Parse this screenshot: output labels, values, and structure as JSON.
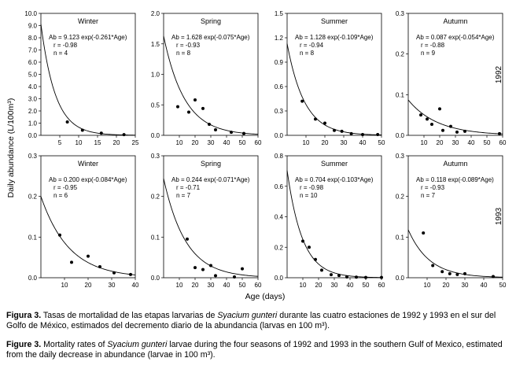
{
  "figure": {
    "ylabel_main": "Daily abundance (L/100m³)",
    "xlabel_main": "Age (days)",
    "year_labels": [
      "1992",
      "1993"
    ]
  },
  "captions": {
    "es": {
      "lead": "Figura 3.",
      "pre": " Tasas de mortalidad de las etapas larvarias de ",
      "species": "Syacium gunteri",
      "post": " durante las cuatro estaciones de 1992 y 1993 en el sur del Golfo de México, estimados del decremento diario de la abundancia (larvas en 100  m³)."
    },
    "en": {
      "lead": "Figure 3.",
      "pre": " Mortality rates of ",
      "species": "Syacium gunteri",
      "post": " larvae during the four seasons of 1992 and 1993 in the southern Gulf of Mexico, estimated from the daily decrease in abundance (larvae in 100 m³)."
    }
  },
  "chart_data": [
    {
      "type": "scatter",
      "year": "1992",
      "title": "Winter",
      "xlim": [
        0,
        25
      ],
      "ylim": [
        0,
        10
      ],
      "xticks": [
        5,
        10,
        15,
        20,
        25
      ],
      "yticks": [
        0,
        1,
        2,
        3,
        4,
        5,
        6,
        7,
        8,
        9,
        10
      ],
      "ytick_labels": [
        "0.0",
        "1.0",
        "2.0",
        "3.0",
        "4.0",
        "5.0",
        "6.0",
        "7.0",
        "8.0",
        "9.0",
        "10.0"
      ],
      "equation": "Ab = 9.123 exp(-0.261*Age)",
      "r": "r = -0.98",
      "n": "n = 4",
      "a": 9.123,
      "k": 0.261,
      "points": [
        {
          "x": 7,
          "y": 1.1
        },
        {
          "x": 11,
          "y": 0.42
        },
        {
          "x": 16,
          "y": 0.18
        },
        {
          "x": 22,
          "y": 0.06
        }
      ]
    },
    {
      "type": "scatter",
      "year": "1992",
      "title": "Spring",
      "xlim": [
        0,
        60
      ],
      "ylim": [
        0,
        2
      ],
      "xticks": [
        10,
        20,
        30,
        40,
        50,
        60
      ],
      "yticks": [
        0,
        0.5,
        1,
        1.5,
        2
      ],
      "ytick_labels": [
        "0.0",
        "0.5",
        "1.0",
        "1.5",
        "2.0"
      ],
      "equation": "Ab = 1.628 exp(-0.075*Age)",
      "r": "r = -0.93",
      "n": "n = 8",
      "a": 1.628,
      "k": 0.075,
      "points": [
        {
          "x": 9,
          "y": 0.47
        },
        {
          "x": 16,
          "y": 0.38
        },
        {
          "x": 20,
          "y": 0.58
        },
        {
          "x": 25,
          "y": 0.44
        },
        {
          "x": 29,
          "y": 0.18
        },
        {
          "x": 33,
          "y": 0.09
        },
        {
          "x": 43,
          "y": 0.05
        },
        {
          "x": 51,
          "y": 0.03
        }
      ]
    },
    {
      "type": "scatter",
      "year": "1992",
      "title": "Summer",
      "xlim": [
        0,
        50
      ],
      "ylim": [
        0,
        1.5
      ],
      "xticks": [
        10,
        20,
        30,
        40,
        50
      ],
      "yticks": [
        0,
        0.3,
        0.6,
        0.9,
        1.2,
        1.5
      ],
      "ytick_labels": [
        "0.0",
        "0.3",
        "0.6",
        "0.9",
        "1.2",
        "1.5"
      ],
      "equation": "Ab = 1.128 exp(-0.109*Age)",
      "r": "r = -0.94",
      "n": "n = 8",
      "a": 1.128,
      "k": 0.109,
      "points": [
        {
          "x": 8,
          "y": 0.42
        },
        {
          "x": 15,
          "y": 0.2
        },
        {
          "x": 20,
          "y": 0.15
        },
        {
          "x": 25,
          "y": 0.06
        },
        {
          "x": 29,
          "y": 0.05
        },
        {
          "x": 34,
          "y": 0.02
        },
        {
          "x": 40,
          "y": 0.01
        },
        {
          "x": 48,
          "y": 0.01
        }
      ]
    },
    {
      "type": "scatter",
      "year": "1992",
      "title": "Autumn",
      "xlim": [
        0,
        60
      ],
      "ylim": [
        0,
        0.3
      ],
      "xticks": [
        10,
        20,
        30,
        40,
        50,
        60
      ],
      "yticks": [
        0,
        0.1,
        0.2,
        0.3
      ],
      "ytick_labels": [
        "0.0",
        "0.1",
        "0.2",
        "0.3"
      ],
      "equation": "Ab = 0.087 exp(-0.054*Age)",
      "r": "r = -0.88",
      "n": "n = 9",
      "a": 0.087,
      "k": 0.054,
      "points": [
        {
          "x": 8,
          "y": 0.05
        },
        {
          "x": 12,
          "y": 0.04
        },
        {
          "x": 15,
          "y": 0.027
        },
        {
          "x": 20,
          "y": 0.065
        },
        {
          "x": 22,
          "y": 0.012
        },
        {
          "x": 27,
          "y": 0.022
        },
        {
          "x": 31,
          "y": 0.008
        },
        {
          "x": 36,
          "y": 0.01
        },
        {
          "x": 58,
          "y": 0.004
        }
      ]
    },
    {
      "type": "scatter",
      "year": "1993",
      "title": "Winter",
      "xlim": [
        0,
        40
      ],
      "ylim": [
        0,
        0.3
      ],
      "xticks": [
        10,
        20,
        30,
        40
      ],
      "yticks": [
        0,
        0.1,
        0.2,
        0.3
      ],
      "ytick_labels": [
        "0.0",
        "0.1",
        "0.2",
        "0.3"
      ],
      "equation": "Ab = 0.200 exp(-0.084*Age)",
      "r": "r = -0.95",
      "n": "n = 6",
      "a": 0.2,
      "k": 0.084,
      "points": [
        {
          "x": 8,
          "y": 0.105
        },
        {
          "x": 13,
          "y": 0.038
        },
        {
          "x": 20,
          "y": 0.053
        },
        {
          "x": 25,
          "y": 0.027
        },
        {
          "x": 31,
          "y": 0.012
        },
        {
          "x": 38,
          "y": 0.008
        }
      ]
    },
    {
      "type": "scatter",
      "year": "1993",
      "title": "Spring",
      "xlim": [
        0,
        60
      ],
      "ylim": [
        0,
        0.3
      ],
      "xticks": [
        10,
        20,
        30,
        40,
        50,
        60
      ],
      "yticks": [
        0,
        0.1,
        0.2,
        0.3
      ],
      "ytick_labels": [
        "0.0",
        "0.1",
        "0.2",
        "0.3"
      ],
      "equation": "Ab = 0.244 exp(-0.071*Age)",
      "r": "r = -0.71",
      "n": "n = 7",
      "a": 0.244,
      "k": 0.071,
      "points": [
        {
          "x": 15,
          "y": 0.095
        },
        {
          "x": 20,
          "y": 0.025
        },
        {
          "x": 25,
          "y": 0.02
        },
        {
          "x": 30,
          "y": 0.03
        },
        {
          "x": 33,
          "y": 0.005
        },
        {
          "x": 45,
          "y": 0.002
        },
        {
          "x": 50,
          "y": 0.022
        }
      ]
    },
    {
      "type": "scatter",
      "year": "1993",
      "title": "Summer",
      "xlim": [
        0,
        60
      ],
      "ylim": [
        0,
        0.8
      ],
      "xticks": [
        10,
        20,
        30,
        40,
        50,
        60
      ],
      "yticks": [
        0,
        0.2,
        0.4,
        0.6,
        0.8
      ],
      "ytick_labels": [
        "0.0",
        "0.2",
        "0.4",
        "0.6",
        "0.8"
      ],
      "equation": "Ab = 0.704 exp(-0.103*Age)",
      "r": "r = -0.98",
      "n": "n = 10",
      "a": 0.704,
      "k": 0.103,
      "points": [
        {
          "x": 10,
          "y": 0.24
        },
        {
          "x": 14,
          "y": 0.2
        },
        {
          "x": 18,
          "y": 0.12
        },
        {
          "x": 22,
          "y": 0.05
        },
        {
          "x": 28,
          "y": 0.02
        },
        {
          "x": 33,
          "y": 0.015
        },
        {
          "x": 38,
          "y": 0.005
        },
        {
          "x": 44,
          "y": 0.004
        },
        {
          "x": 50,
          "y": 0.002
        },
        {
          "x": 60,
          "y": 0.002
        }
      ]
    },
    {
      "type": "scatter",
      "year": "1993",
      "title": "Autumn",
      "xlim": [
        0,
        50
      ],
      "ylim": [
        0,
        0.3
      ],
      "xticks": [
        10,
        20,
        30,
        40,
        50
      ],
      "yticks": [
        0,
        0.1,
        0.2,
        0.3
      ],
      "ytick_labels": [
        "0.0",
        "0.1",
        "0.2",
        "0.3"
      ],
      "equation": "Ab = 0.118 exp(-0.089*Age)",
      "r": "r = -0.93",
      "n": "n = 7",
      "a": 0.118,
      "k": 0.089,
      "points": [
        {
          "x": 8,
          "y": 0.11
        },
        {
          "x": 13,
          "y": 0.03
        },
        {
          "x": 18,
          "y": 0.015
        },
        {
          "x": 22,
          "y": 0.01
        },
        {
          "x": 26,
          "y": 0.008
        },
        {
          "x": 30,
          "y": 0.01
        },
        {
          "x": 45,
          "y": 0.003
        }
      ]
    }
  ]
}
